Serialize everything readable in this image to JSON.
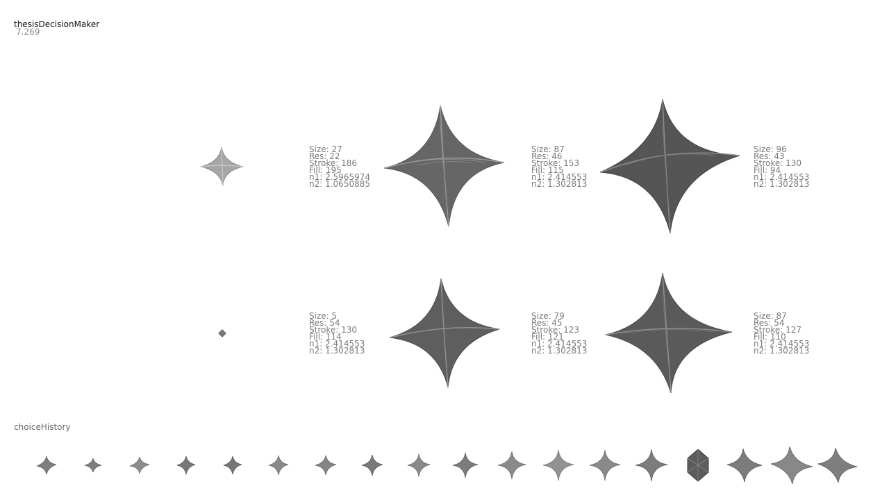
{
  "app": {
    "title": "thesisDecisionMaker",
    "fps": "7.269"
  },
  "choices": [
    {
      "stats": {
        "size": "Size: 27",
        "res": "Res: 22",
        "stroke": "Stroke: 186",
        "fill": "Fill: 195",
        "n1": "n1: 2.5965974",
        "n2": "n2: 1.0650885"
      }
    },
    {
      "stats": {
        "size": "Size: 87",
        "res": "Res: 46",
        "stroke": "Stroke: 153",
        "fill": "Fill: 115",
        "n1": "n1: 2.414553",
        "n2": "n2: 1.302813"
      }
    },
    {
      "stats": {
        "size": "Size: 96",
        "res": "Res: 43",
        "stroke": "Stroke: 130",
        "fill": "Fill: 94",
        "n1": "n1: 2.414553",
        "n2": "n2: 1.302813"
      }
    },
    {
      "stats": {
        "size": "Size: 5",
        "res": "Res: 54",
        "stroke": "Stroke: 130",
        "fill": "Fill: 114",
        "n1": "n1: 2.414553",
        "n2": "n2: 1.302813"
      }
    },
    {
      "stats": {
        "size": "Size: 79",
        "res": "Res: 45",
        "stroke": "Stroke: 123",
        "fill": "Fill: 121",
        "n1": "n1: 2.414553",
        "n2": "n2: 1.302813"
      }
    },
    {
      "stats": {
        "size": "Size: 87",
        "res": "Res: 54",
        "stroke": "Stroke: 127",
        "fill": "Fill: 110",
        "n1": "n1: 2.414553",
        "n2": "n2: 1.302813"
      }
    }
  ],
  "history": {
    "label": "choiceHistory",
    "count": 18
  }
}
